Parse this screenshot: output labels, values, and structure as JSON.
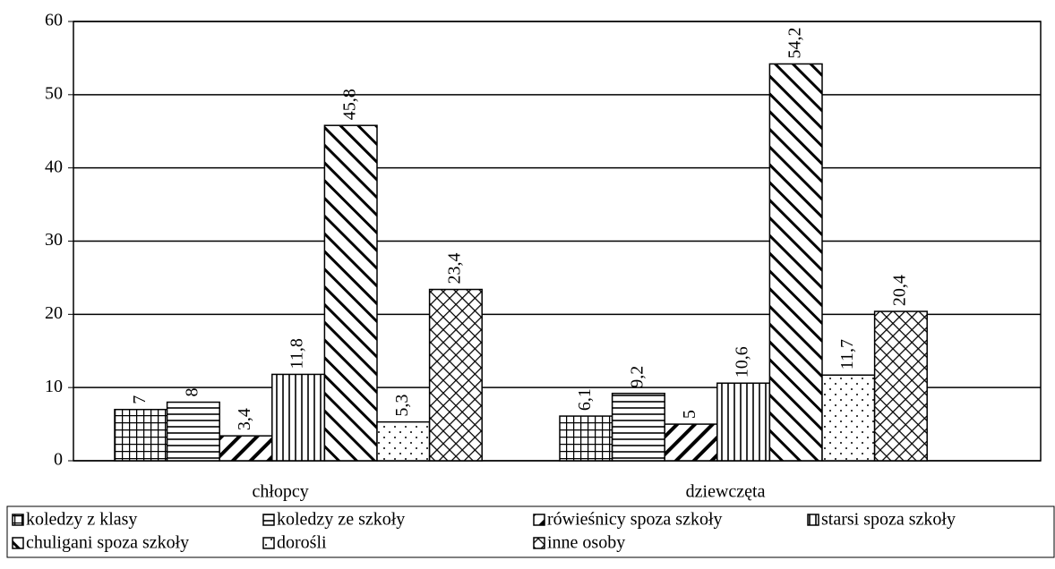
{
  "chart_data": {
    "type": "bar",
    "categories": [
      "chłopcy",
      "dziewczęta"
    ],
    "series": [
      {
        "name": "koledzy z klasy",
        "pattern": "grid",
        "values": [
          7,
          6.1
        ],
        "value_labels": [
          "7",
          "6,1"
        ]
      },
      {
        "name": "koledzy ze szkoły",
        "pattern": "horizontal",
        "values": [
          8,
          9.2
        ],
        "value_labels": [
          "8",
          "9,2"
        ]
      },
      {
        "name": "rówieśnicy spoza szkoły",
        "pattern": "diagonal-up",
        "values": [
          3.4,
          5
        ],
        "value_labels": [
          "3,4",
          "5"
        ]
      },
      {
        "name": "starsi spoza szkoły",
        "pattern": "vertical",
        "values": [
          11.8,
          10.6
        ],
        "value_labels": [
          "11,8",
          "10,6"
        ]
      },
      {
        "name": "chuligani spoza szkoły",
        "pattern": "diagonal-down",
        "values": [
          45.8,
          54.2
        ],
        "value_labels": [
          "45,8",
          "54,2"
        ]
      },
      {
        "name": "dorośli",
        "pattern": "dots",
        "values": [
          5.3,
          11.7
        ],
        "value_labels": [
          "5,3",
          "11,7"
        ]
      },
      {
        "name": "inne osoby",
        "pattern": "crosshatch",
        "values": [
          23.4,
          20.4
        ],
        "value_labels": [
          "23,4",
          "20,4"
        ]
      }
    ],
    "ylim": [
      0,
      60
    ],
    "yticks": [
      0,
      10,
      20,
      30,
      40,
      50,
      60
    ],
    "grid": true,
    "legend": "bottom"
  }
}
